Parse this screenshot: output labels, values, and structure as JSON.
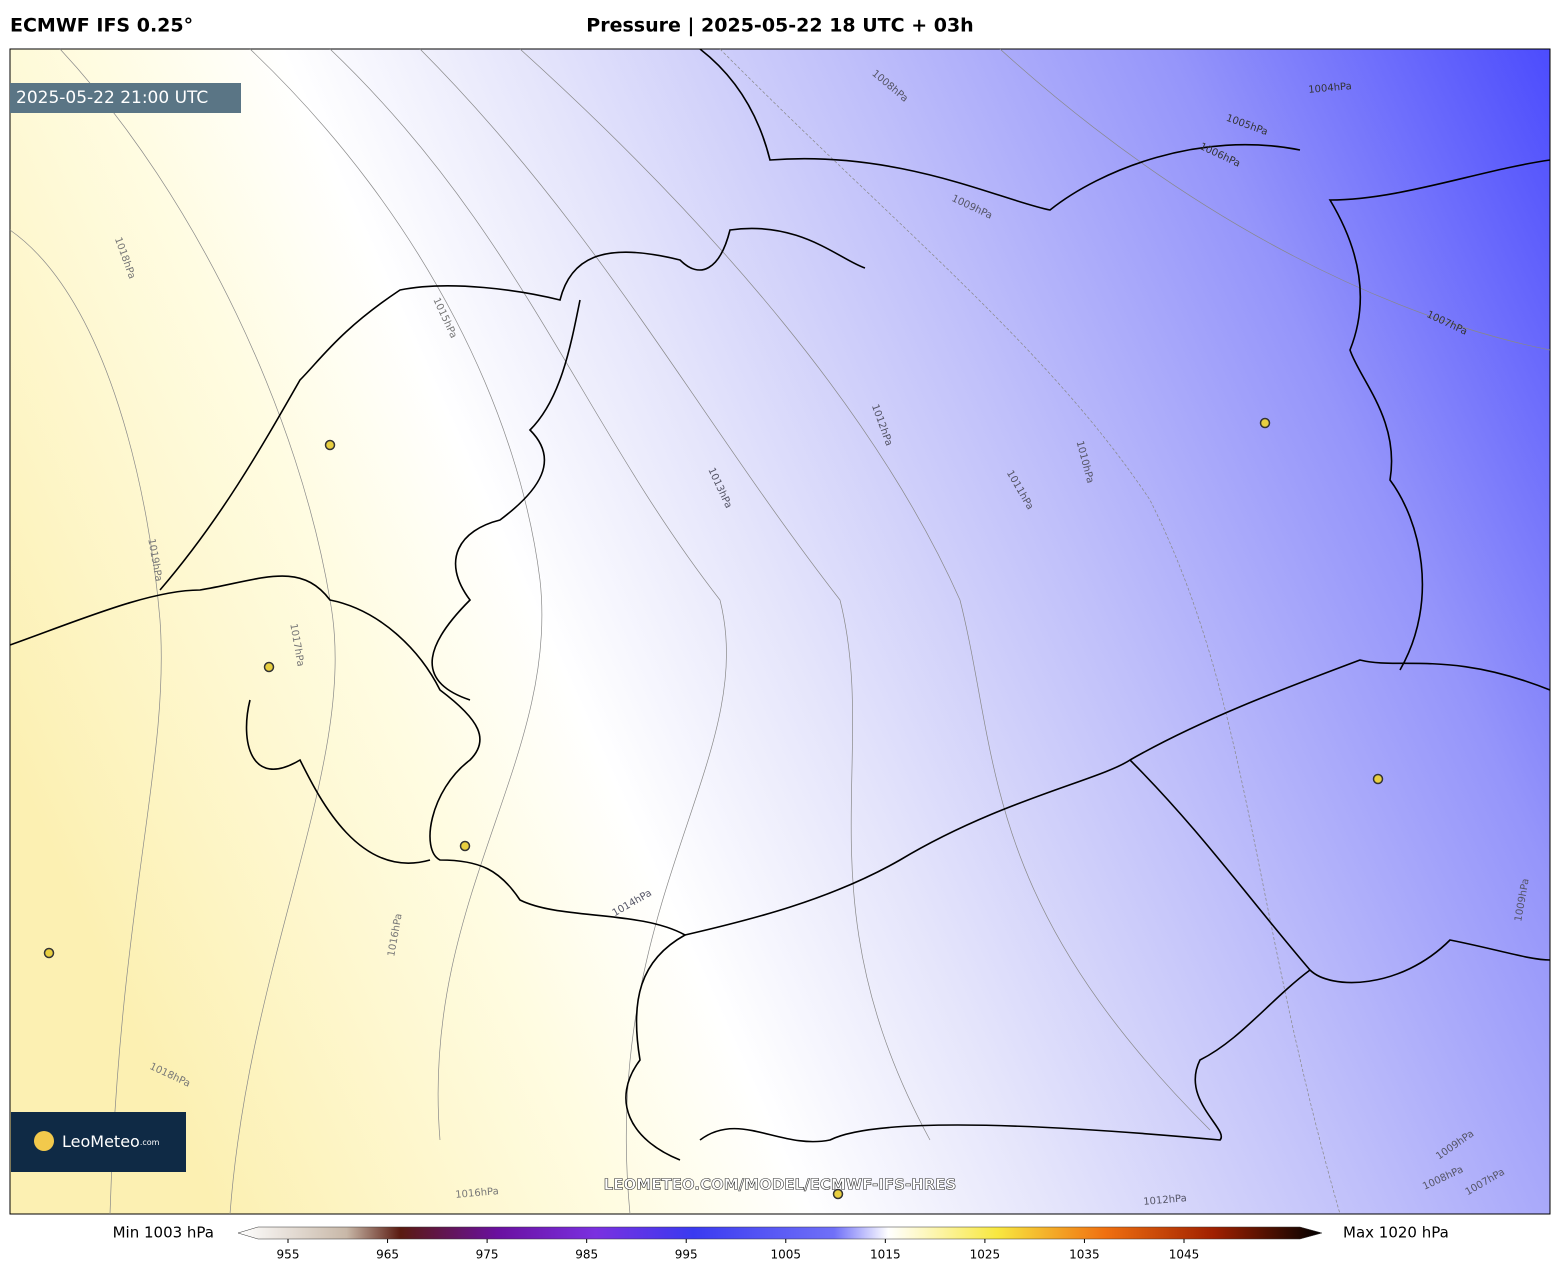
{
  "header": {
    "model": "ECMWF IFS 0.25°",
    "title": "Pressure | 2025-05-22 18 UTC + 03h"
  },
  "map": {
    "valid_time": "2025-05-22 21:00 UTC",
    "watermark": "LEOMETEO.COM/MODEL/ECMWF-IFS-HRES",
    "logo": {
      "name": "LeoMeteo",
      "suffix": ".com"
    },
    "contour_labels": [
      "1018hPa",
      "1019hPa",
      "1017hPa",
      "1016hPa",
      "1018hPa",
      "1016hPa",
      "1015hPa",
      "1014hPa",
      "1013hPa",
      "1012hPa",
      "1011hPa",
      "1010hPa",
      "1009hPa",
      "1008hPa",
      "1006hPa",
      "1005hPa",
      "1004hPa",
      "1007hPa",
      "1009hPa",
      "1012hPa",
      "1009hPa",
      "1008hPa",
      "1007hPa"
    ]
  },
  "colorbar": {
    "min_label": "Min 1003 hPa",
    "max_label": "Max 1020 hPa",
    "ticks": [
      955,
      965,
      975,
      985,
      995,
      1005,
      1015,
      1025,
      1035,
      1045
    ]
  }
}
